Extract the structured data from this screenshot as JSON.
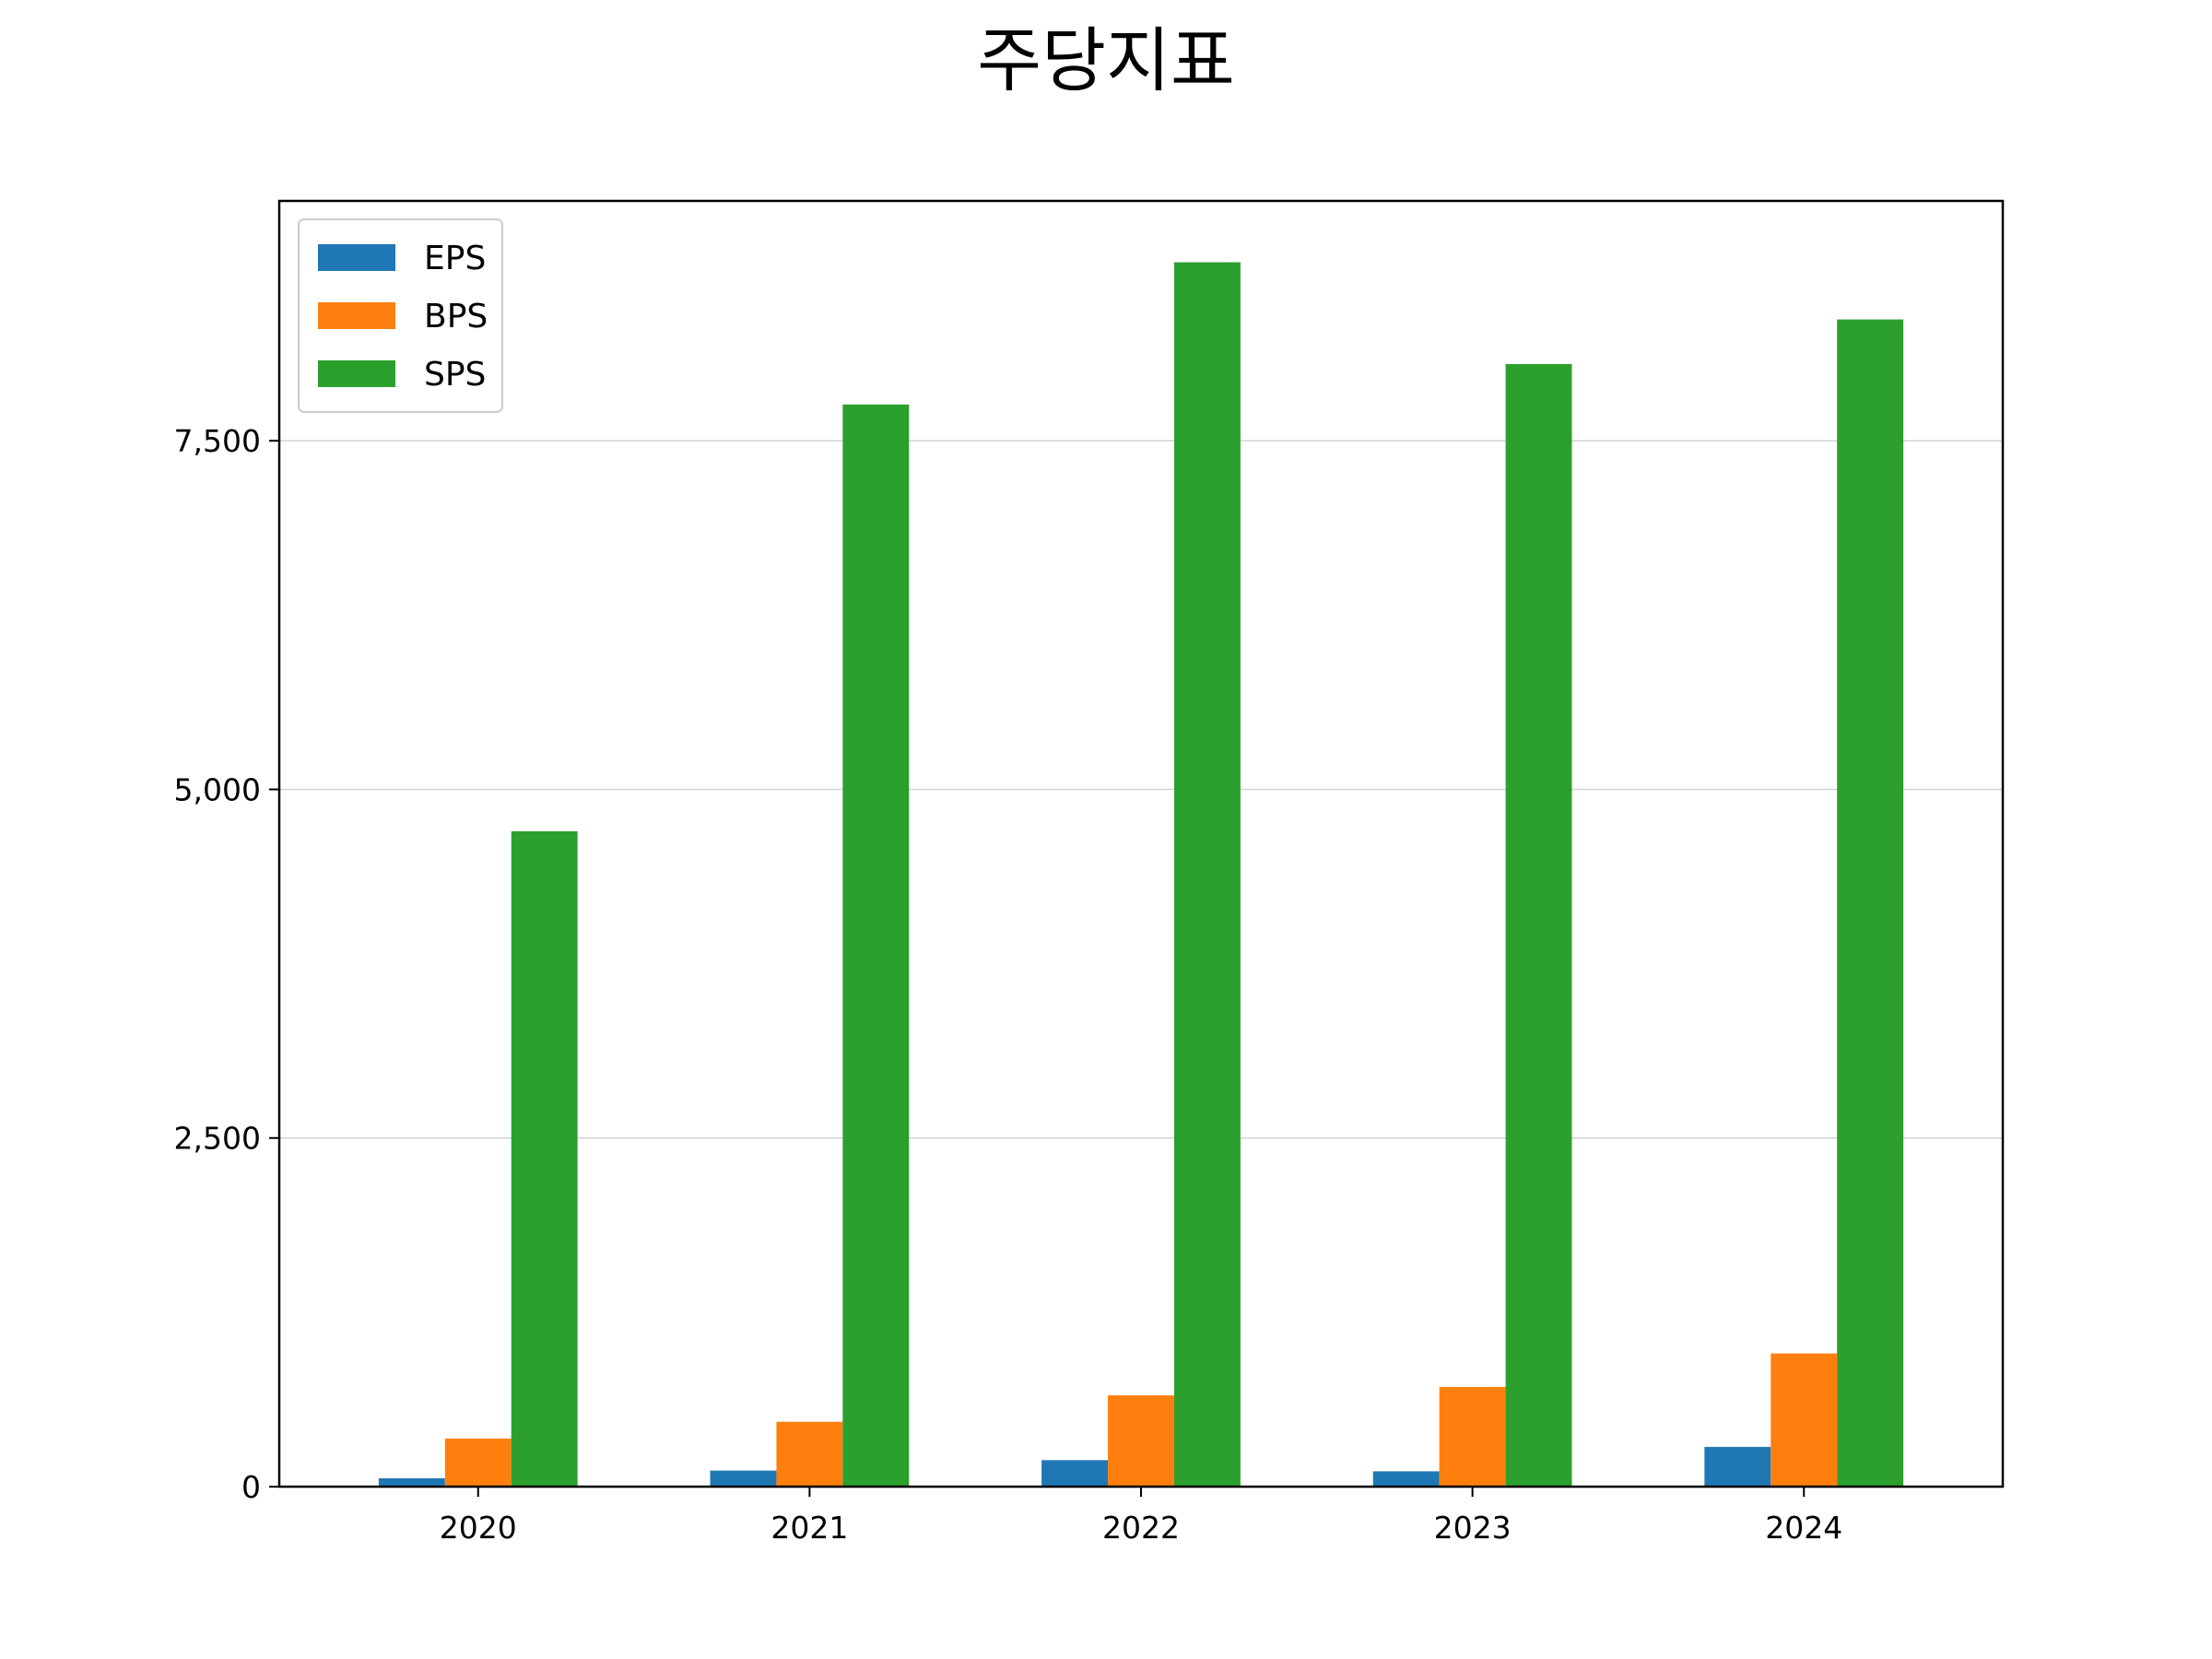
{
  "chart_data": {
    "type": "bar",
    "title": "주당지표",
    "xlabel": "",
    "ylabel": "",
    "categories": [
      "2020",
      "2021",
      "2022",
      "2023",
      "2024"
    ],
    "series": [
      {
        "name": "EPS",
        "color": "#1f77b4",
        "values": [
          60,
          115,
          190,
          110,
          285
        ]
      },
      {
        "name": "BPS",
        "color": "#ff7f0e",
        "values": [
          345,
          465,
          655,
          715,
          955
        ]
      },
      {
        "name": "SPS",
        "color": "#2ca02c",
        "values": [
          4700,
          7760,
          8780,
          8050,
          8370
        ]
      }
    ],
    "ylim": [
      0,
      9220
    ],
    "yticks": [
      0,
      2500,
      5000,
      7500
    ],
    "ytick_labels": [
      "0",
      "2,500",
      "5,000",
      "7,500"
    ],
    "grid": {
      "y": true,
      "x": false
    },
    "legend": {
      "position": "top-left"
    }
  }
}
